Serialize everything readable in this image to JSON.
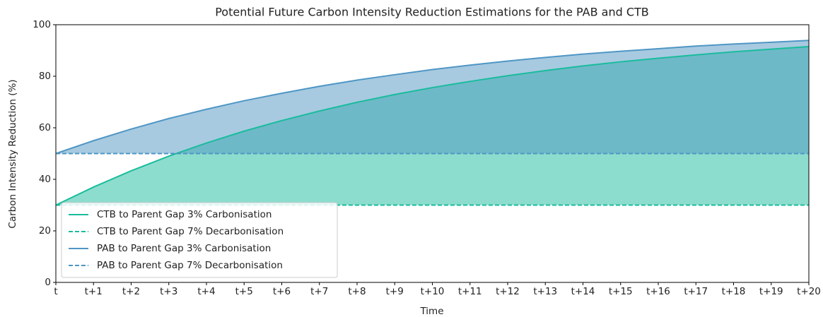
{
  "chart_data": {
    "type": "line",
    "title": "Potential Future Carbon Intensity Reduction Estimations for the PAB and CTB",
    "x_label": "Time",
    "y_label": "Carbon Intensity Reduction (%)",
    "categories": [
      "t",
      "t+1",
      "t+2",
      "t+3",
      "t+4",
      "t+5",
      "t+6",
      "t+7",
      "t+8",
      "t+9",
      "t+10",
      "t+11",
      "t+12",
      "t+13",
      "t+14",
      "t+15",
      "t+16",
      "t+17",
      "t+18",
      "t+19",
      "t+20"
    ],
    "series": [
      {
        "name": "CTB to Parent Gap 3% Carbonisation",
        "color": "#1abc9c",
        "dash": false,
        "fill_to_series": 1,
        "fill_color": "#1abc9c",
        "values": [
          30,
          37,
          43.3,
          49.0,
          54.1,
          58.7,
          62.8,
          66.5,
          69.9,
          72.9,
          75.6,
          78.0,
          80.2,
          82.2,
          84.0,
          85.6,
          87.0,
          88.3,
          89.5,
          90.5,
          91.5
        ]
      },
      {
        "name": "CTB to Parent Gap 7% Decarbonisation",
        "color": "#1abc9c",
        "dash": true,
        "values": [
          30,
          30,
          30,
          30,
          30,
          30,
          30,
          30,
          30,
          30,
          30,
          30,
          30,
          30,
          30,
          30,
          30,
          30,
          30,
          30,
          30
        ]
      },
      {
        "name": "PAB to Parent Gap 3% Carbonisation",
        "color": "#4f96c4",
        "dash": false,
        "fill_to_series": 3,
        "fill_color": "#4f96c4",
        "values": [
          50,
          55,
          59.5,
          63.6,
          67.2,
          70.5,
          73.4,
          76.1,
          78.5,
          80.6,
          82.6,
          84.3,
          85.9,
          87.3,
          88.6,
          89.7,
          90.7,
          91.7,
          92.5,
          93.2,
          93.9
        ]
      },
      {
        "name": "PAB to Parent Gap 7% Decarbonisation",
        "color": "#4f96c4",
        "dash": true,
        "values": [
          50,
          50,
          50,
          50,
          50,
          50,
          50,
          50,
          50,
          50,
          50,
          50,
          50,
          50,
          50,
          50,
          50,
          50,
          50,
          50,
          50
        ]
      }
    ],
    "ylim": [
      0,
      100
    ],
    "yticks": [
      0,
      20,
      40,
      60,
      80,
      100
    ],
    "grid": false,
    "legend": "lower left"
  }
}
